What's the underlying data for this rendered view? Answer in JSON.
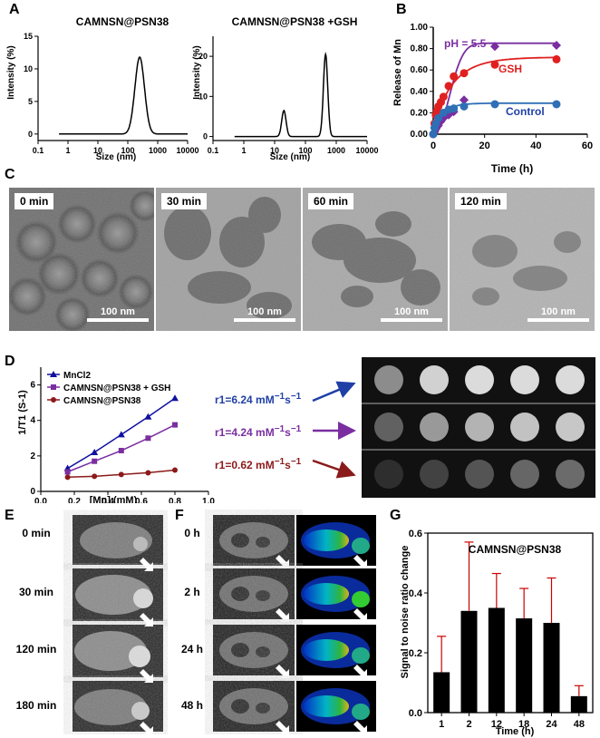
{
  "panel_labels": {
    "A": "A",
    "B": "B",
    "C": "C",
    "D": "D",
    "E": "E",
    "F": "F",
    "G": "G"
  },
  "colors": {
    "blue": "#1f3fa6",
    "red": "#e02020",
    "purple": "#7a2ea0",
    "darkred": "#8b1a1a",
    "steelblue": "#2f6fb5",
    "navy": "#1010a0"
  },
  "chart_data": [
    {
      "id": "A1",
      "type": "line",
      "title": "CAMNSN@PSN38",
      "xlabel": "Size (nm)",
      "ylabel": "Intensity (%)",
      "xscale": "log",
      "xlim": [
        0.1,
        10000
      ],
      "ylim": [
        -1,
        15
      ],
      "xticks": [
        "0.1",
        "1",
        "10",
        "100",
        "1000",
        "10000"
      ],
      "yticks": [
        "0",
        "5",
        "10",
        "15"
      ],
      "peaks": [
        {
          "center": 250,
          "height": 11.8,
          "width": 0.16
        }
      ],
      "baseline_start": 0.5
    },
    {
      "id": "A2",
      "type": "line",
      "title": "CAMNSN@PSN38 +GSH",
      "xlabel": "Size (nm)",
      "ylabel": "Intensity (%)",
      "xscale": "log",
      "xlim": [
        0.1,
        10000
      ],
      "ylim": [
        -1,
        25
      ],
      "xticks": [
        "0.1",
        "1",
        "10",
        "100",
        "1000",
        "10000"
      ],
      "yticks": [
        "0",
        "10",
        "20"
      ],
      "peaks": [
        {
          "center": 20,
          "height": 6.5,
          "width": 0.07
        },
        {
          "center": 450,
          "height": 20.5,
          "width": 0.07
        }
      ],
      "baseline_start": 0.5
    },
    {
      "id": "B",
      "type": "scatter",
      "title": "",
      "xlabel": "Time (h)",
      "ylabel": "Release of Mn",
      "xlim": [
        0,
        60
      ],
      "ylim": [
        0,
        1.0
      ],
      "xticks": [
        "0",
        "20",
        "40",
        "60"
      ],
      "yticks": [
        "0.00",
        "0.20",
        "0.40",
        "0.60",
        "0.80",
        "1.00"
      ],
      "series": [
        {
          "name": "pH = 5.5",
          "marker": "diamond",
          "x": [
            0.5,
            1,
            2,
            3,
            4,
            6,
            8,
            12,
            24,
            48
          ],
          "y": [
            0.02,
            0.05,
            0.08,
            0.12,
            0.15,
            0.18,
            0.21,
            0.32,
            0.82,
            0.83
          ],
          "fit": {
            "a": 0.85,
            "k": 0.12,
            "n": 2.2
          }
        },
        {
          "name": "GSH",
          "marker": "circle",
          "x": [
            0,
            0.5,
            1,
            1.5,
            2,
            3,
            4,
            6,
            8,
            12,
            24,
            48
          ],
          "y": [
            0,
            0.1,
            0.18,
            0.22,
            0.26,
            0.3,
            0.35,
            0.45,
            0.54,
            0.57,
            0.65,
            0.7
          ],
          "fit": {
            "a": 0.72,
            "k": 0.14,
            "n": 0.9
          }
        },
        {
          "name": "Control",
          "marker": "circle",
          "x": [
            0,
            0.5,
            1,
            2,
            4,
            6,
            8,
            12,
            24,
            48
          ],
          "y": [
            0,
            0.06,
            0.1,
            0.15,
            0.2,
            0.23,
            0.24,
            0.26,
            0.28,
            0.28
          ],
          "fit": {
            "a": 0.29,
            "k": 0.3,
            "n": 0.9
          }
        }
      ]
    },
    {
      "id": "D",
      "type": "line",
      "xlabel": "[Mn] (mM)",
      "ylabel": "1/T1 (S-1)",
      "xlim": [
        0,
        1.0
      ],
      "ylim": [
        0,
        7
      ],
      "xticks": [
        "0.0",
        "0.2",
        "0.4",
        "0.6",
        "0.8",
        "1.0"
      ],
      "yticks": [
        "0",
        "2",
        "4",
        "6"
      ],
      "series": [
        {
          "name": "MnCl2",
          "marker": "triangle",
          "x": [
            0.16,
            0.32,
            0.48,
            0.64,
            0.8
          ],
          "y": [
            1.3,
            2.2,
            3.2,
            4.2,
            5.25
          ]
        },
        {
          "name": "CAMNSN@PSN38 + GSH",
          "marker": "square",
          "x": [
            0.16,
            0.32,
            0.48,
            0.64,
            0.8
          ],
          "y": [
            1.1,
            1.7,
            2.3,
            3.0,
            3.75
          ]
        },
        {
          "name": "CAMNSN@PSN38",
          "marker": "circle",
          "x": [
            0.16,
            0.32,
            0.48,
            0.64,
            0.8
          ],
          "y": [
            0.8,
            0.85,
            0.95,
            1.05,
            1.2
          ]
        }
      ]
    },
    {
      "id": "G",
      "type": "bar",
      "title": "CAMNSN@PSN38",
      "xlabel": "Time (h)",
      "ylabel": "Signal to noise  ratio change",
      "categories": [
        "1",
        "2",
        "12",
        "18",
        "24",
        "48"
      ],
      "values": [
        0.135,
        0.34,
        0.35,
        0.315,
        0.3,
        0.055
      ],
      "errors": [
        0.12,
        0.23,
        0.115,
        0.1,
        0.15,
        0.035
      ],
      "ylim": [
        0,
        0.6
      ],
      "yticks": [
        "0.0",
        "0.2",
        "0.4",
        "0.6"
      ]
    }
  ],
  "panel_c": {
    "frames": [
      {
        "time": "0 min",
        "scale": "100 nm"
      },
      {
        "time": "30 min",
        "scale": "100 nm"
      },
      {
        "time": "60 min",
        "scale": "100 nm"
      },
      {
        "time": "120 min",
        "scale": "100 nm"
      }
    ]
  },
  "panel_d": {
    "relaxivity": [
      {
        "label": "r1=6.24 mM",
        "sup": "−1",
        "s": "s",
        "sup2": "−1"
      },
      {
        "label": "r1=4.24 mM",
        "sup": "−1",
        "s": "s",
        "sup2": "−1"
      },
      {
        "label": "r1=0.62 mM",
        "sup": "−1",
        "s": "s",
        "sup2": "−1"
      }
    ],
    "phantom_intensity": [
      [
        0.55,
        0.82,
        0.86,
        0.86,
        0.86
      ],
      [
        0.38,
        0.6,
        0.7,
        0.76,
        0.78
      ],
      [
        0.18,
        0.26,
        0.33,
        0.4,
        0.42
      ]
    ]
  },
  "panel_e": {
    "times": [
      "0  min",
      "30  min",
      "120 min",
      "180 min"
    ]
  },
  "panel_f": {
    "times": [
      "0  h",
      "2  h",
      "24 h",
      "48 h"
    ]
  }
}
